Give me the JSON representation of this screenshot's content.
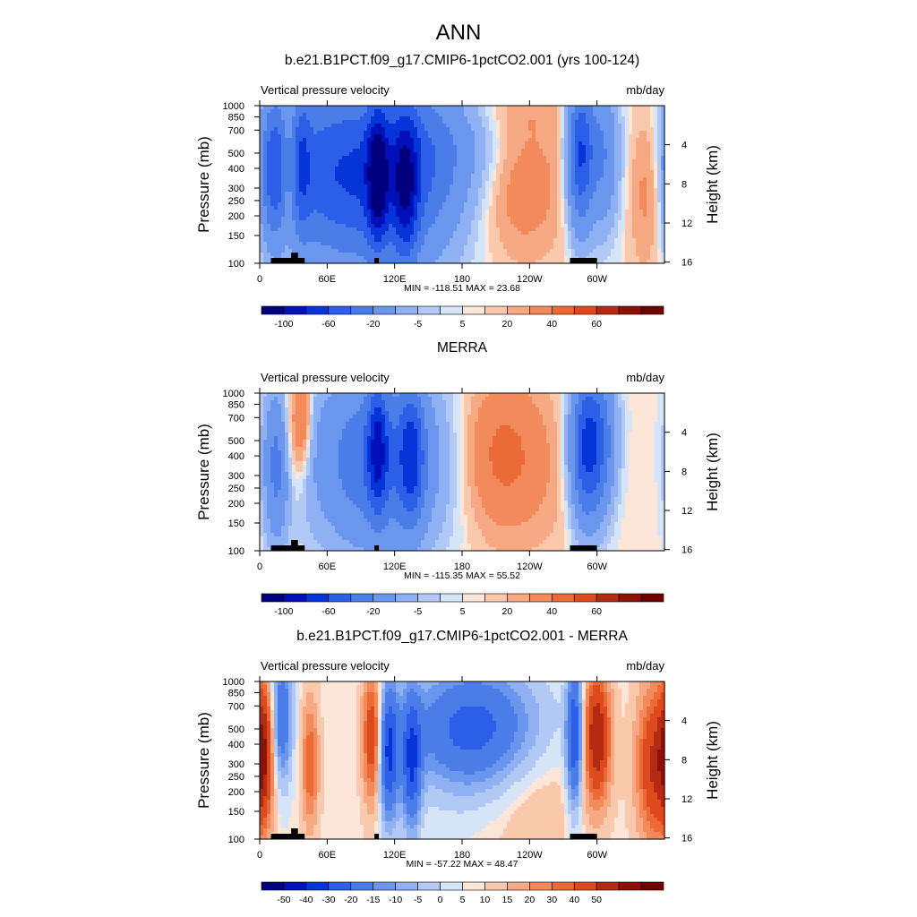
{
  "title": "ANN",
  "chart_data": [
    {
      "type": "heatmap",
      "title": "b.e21.B1PCT.f09_g17.CMIP6-1pctCO2.001 (yrs 100-124)",
      "left_label": "Vertical pressure velocity",
      "right_label": "mb/day",
      "ylabel": "Pressure (mb)",
      "ylabel_right": "Height (km)",
      "x_ticks": [
        "0",
        "60E",
        "120E",
        "180",
        "120W",
        "60W"
      ],
      "y_ticks": [
        "100",
        "150",
        "200",
        "250",
        "300",
        "400",
        "500",
        "700",
        "850",
        "1000"
      ],
      "y_right_ticks": [
        "16",
        "12",
        "8",
        "4"
      ],
      "xlim": [
        0,
        360
      ],
      "ylim": [
        1000,
        100
      ],
      "y_scale": "log",
      "stats": "MIN = -118.51  MAX =  23.68",
      "colorbar_levels": [
        -120,
        -100,
        -80,
        -60,
        -40,
        -20,
        -10,
        -5,
        -1,
        1,
        5,
        10,
        20,
        30,
        40,
        50,
        60,
        80
      ],
      "colorbar_labels": [
        "-100",
        "-60",
        "-20",
        "-5",
        "5",
        "20",
        "40",
        "60"
      ],
      "features": [
        {
          "lon": 45,
          "p": 400,
          "v": -40,
          "wlon": 32,
          "wp": 1.4
        },
        {
          "lon": 110,
          "p": 350,
          "v": -75,
          "wlon": 45,
          "wp": 1.5
        },
        {
          "lon": 12,
          "p": 400,
          "v": -50,
          "wlon": 8,
          "wp": 1.1
        },
        {
          "lon": 38,
          "p": 450,
          "v": -30,
          "wlon": 5,
          "wp": 1.2
        },
        {
          "lon": 105,
          "p": 350,
          "v": -80,
          "wlon": 6,
          "wp": 1.0
        },
        {
          "lon": 130,
          "p": 300,
          "v": -60,
          "wlon": 8,
          "wp": 1.2
        },
        {
          "lon": 160,
          "p": 600,
          "v": -20,
          "wlon": 40,
          "wp": 1.0
        },
        {
          "lon": 285,
          "p": 500,
          "v": -80,
          "wlon": 8,
          "wp": 1.2
        },
        {
          "lon": 305,
          "p": 500,
          "v": -40,
          "wlon": 10,
          "wp": 1.2
        },
        {
          "lon": 25,
          "p": 350,
          "v": 18,
          "wlon": 4,
          "wp": 1.1
        },
        {
          "lon": 230,
          "p": 320,
          "v": 18,
          "wlon": 30,
          "wp": 1.2
        },
        {
          "lon": 345,
          "p": 300,
          "v": 18,
          "wlon": 12,
          "wp": 1.3
        },
        {
          "lon": 215,
          "p": 900,
          "v": 6,
          "wlon": 50,
          "wp": 0.4
        }
      ]
    },
    {
      "type": "heatmap",
      "title": "MERRA",
      "left_label": "Vertical pressure velocity",
      "right_label": "mb/day",
      "ylabel": "Pressure (mb)",
      "ylabel_right": "Height (km)",
      "x_ticks": [
        "0",
        "60E",
        "120E",
        "180",
        "120W",
        "60W"
      ],
      "y_ticks": [
        "100",
        "150",
        "200",
        "250",
        "300",
        "400",
        "500",
        "700",
        "850",
        "1000"
      ],
      "y_right_ticks": [
        "16",
        "12",
        "8",
        "4"
      ],
      "xlim": [
        0,
        360
      ],
      "ylim": [
        1000,
        100
      ],
      "y_scale": "log",
      "stats": "MIN = -115.35  MAX =  55.52",
      "colorbar_levels": [
        -120,
        -100,
        -80,
        -60,
        -40,
        -20,
        -10,
        -5,
        -1,
        1,
        5,
        10,
        20,
        30,
        40,
        50,
        60,
        80
      ],
      "colorbar_labels": [
        "-100",
        "-60",
        "-20",
        "-5",
        "5",
        "20",
        "40",
        "60"
      ],
      "features": [
        {
          "lon": 105,
          "p": 380,
          "v": -60,
          "wlon": 40,
          "wp": 1.4
        },
        {
          "lon": 15,
          "p": 350,
          "v": -45,
          "wlon": 8,
          "wp": 1.2
        },
        {
          "lon": 105,
          "p": 450,
          "v": -60,
          "wlon": 6,
          "wp": 1.0
        },
        {
          "lon": 135,
          "p": 400,
          "v": -55,
          "wlon": 8,
          "wp": 1.1
        },
        {
          "lon": 290,
          "p": 450,
          "v": -80,
          "wlon": 10,
          "wp": 1.2
        },
        {
          "lon": 305,
          "p": 500,
          "v": -40,
          "wlon": 10,
          "wp": 1.2
        },
        {
          "lon": 30,
          "p": 550,
          "v": 22,
          "wlon": 8,
          "wp": 1.0
        },
        {
          "lon": 40,
          "p": 700,
          "v": 18,
          "wlon": 5,
          "wp": 0.8
        },
        {
          "lon": 215,
          "p": 420,
          "v": 22,
          "wlon": 28,
          "wp": 1.2
        },
        {
          "lon": 260,
          "p": 250,
          "v": 4,
          "wlon": 50,
          "wp": 1.5
        }
      ]
    },
    {
      "type": "heatmap",
      "title": "b.e21.B1PCT.f09_g17.CMIP6-1pctCO2.001 - MERRA",
      "left_label": "Vertical pressure velocity",
      "right_label": "mb/day",
      "ylabel": "Pressure (mb)",
      "ylabel_right": "Height (km)",
      "x_ticks": [
        "0",
        "60E",
        "120E",
        "180",
        "120W",
        "60W"
      ],
      "y_ticks": [
        "100",
        "150",
        "200",
        "250",
        "300",
        "400",
        "500",
        "700",
        "850",
        "1000"
      ],
      "y_right_ticks": [
        "16",
        "12",
        "8",
        "4"
      ],
      "xlim": [
        0,
        360
      ],
      "ylim": [
        1000,
        100
      ],
      "y_scale": "log",
      "stats": "MIN = -57.22  MAX =  48.47",
      "colorbar_levels": [
        -60,
        -50,
        -40,
        -30,
        -20,
        -15,
        -10,
        -5,
        -1,
        1,
        5,
        10,
        15,
        20,
        30,
        40,
        50,
        60
      ],
      "colorbar_labels": [
        "-50",
        "-40",
        "-30",
        "-20",
        "-15",
        "-10",
        "-5",
        "0",
        "5",
        "10",
        "15",
        "20",
        "30",
        "40",
        "50"
      ],
      "features": [
        {
          "lon": 3,
          "p": 350,
          "v": 35,
          "wlon": 6,
          "wp": 1.1
        },
        {
          "lon": 20,
          "p": 600,
          "v": -30,
          "wlon": 6,
          "wp": 1.0
        },
        {
          "lon": 45,
          "p": 300,
          "v": 20,
          "wlon": 5,
          "wp": 1.0
        },
        {
          "lon": 100,
          "p": 450,
          "v": 30,
          "wlon": 6,
          "wp": 1.0
        },
        {
          "lon": 115,
          "p": 350,
          "v": -40,
          "wlon": 6,
          "wp": 1.1
        },
        {
          "lon": 135,
          "p": 300,
          "v": -35,
          "wlon": 6,
          "wp": 1.1
        },
        {
          "lon": 190,
          "p": 500,
          "v": -35,
          "wlon": 40,
          "wp": 1.0
        },
        {
          "lon": 280,
          "p": 450,
          "v": -40,
          "wlon": 5,
          "wp": 1.1
        },
        {
          "lon": 300,
          "p": 450,
          "v": 40,
          "wlon": 8,
          "wp": 1.0
        },
        {
          "lon": 350,
          "p": 300,
          "v": 30,
          "wlon": 10,
          "wp": 1.2
        },
        {
          "lon": 240,
          "p": 200,
          "v": 6,
          "wlon": 30,
          "wp": 1.0
        }
      ]
    }
  ],
  "colors": {
    "negative": [
      "#00007f",
      "#0010b8",
      "#0535d8",
      "#2d5ee8",
      "#4a7de8",
      "#6b96ed",
      "#8fb0f2",
      "#b2c9f5",
      "#d6e4f8"
    ],
    "positive": [
      "#fde6d8",
      "#f9c8ad",
      "#f6a983",
      "#f28a5b",
      "#ec6a35",
      "#dc4a1d",
      "#b52a12",
      "#8a1208",
      "#6e0000"
    ],
    "terrain": "#000000"
  }
}
